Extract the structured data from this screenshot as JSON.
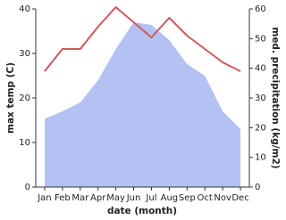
{
  "chart_data": {
    "type": "line",
    "x_label": "date (month)",
    "y_label": "max temp (C)",
    "y2_label": "med. precipitation (kg/m2)",
    "categories": [
      "Jan",
      "Feb",
      "Mar",
      "Apr",
      "May",
      "Jun",
      "Jul",
      "Aug",
      "Sep",
      "Oct",
      "Nov",
      "Dec"
    ],
    "series": [
      {
        "type": "area",
        "axis": "y2",
        "color": "#b3c1f3",
        "values": [
          23,
          25.5,
          28.5,
          36,
          46.5,
          55.5,
          54.6,
          49.5,
          41.4,
          37.5,
          25.5,
          19.5
        ]
      },
      {
        "type": "line",
        "color": "#cc5a5e",
        "values": [
          26,
          31,
          31,
          36,
          40.4,
          37,
          33.6,
          38,
          34,
          31,
          28,
          26
        ]
      }
    ],
    "ylim": [
      0,
      40
    ],
    "yticks": [
      0,
      10,
      20,
      30,
      40
    ],
    "y2lim": [
      0,
      60
    ],
    "y2ticks": [
      0,
      10,
      20,
      30,
      40,
      50,
      60
    ]
  }
}
